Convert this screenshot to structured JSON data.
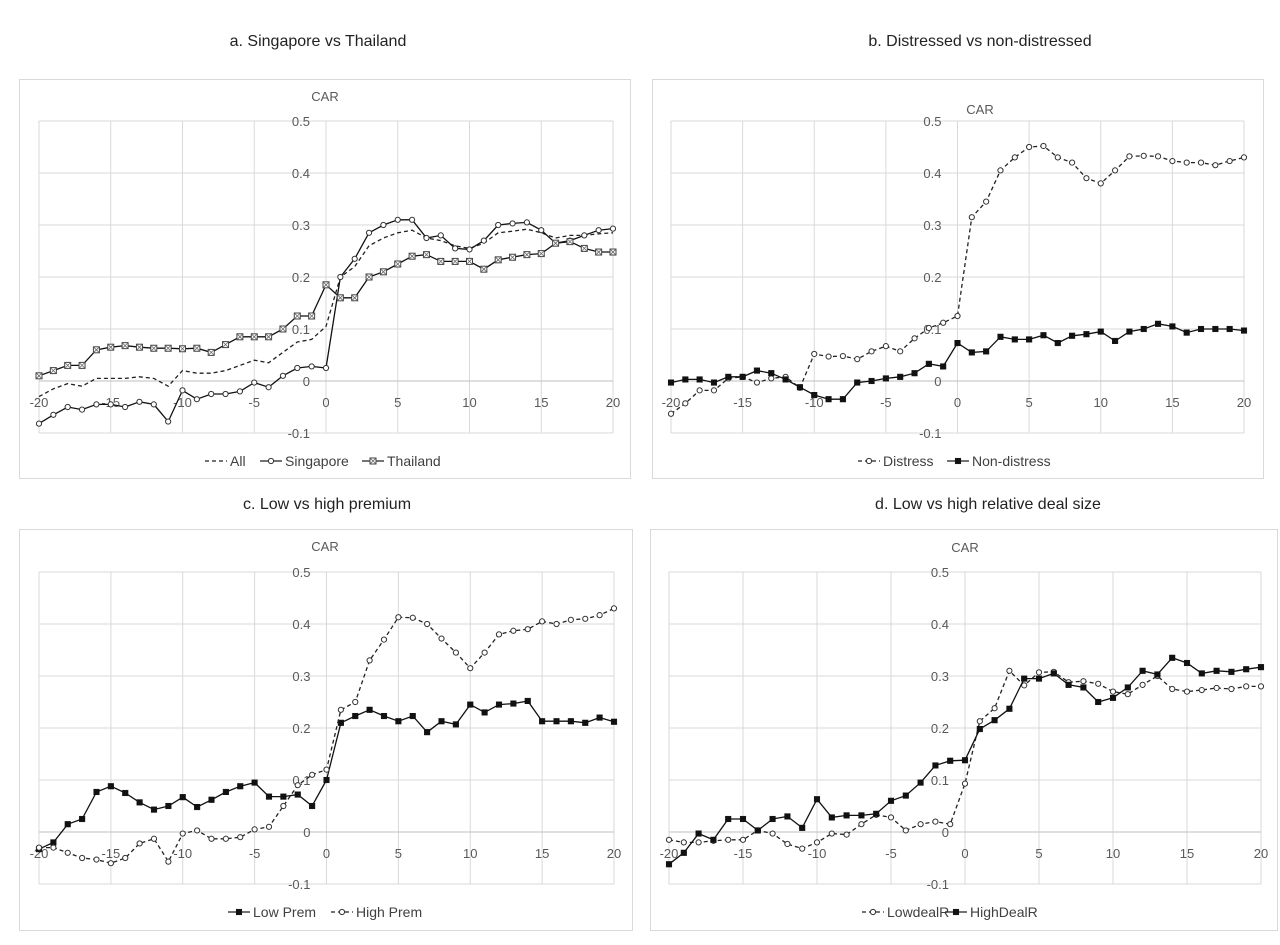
{
  "panels": [
    {
      "title": "a.  Singapore vs Thailand"
    },
    {
      "title": "b.  Distressed vs non-distressed"
    },
    {
      "title": "c.  Low vs high premium"
    },
    {
      "title": "d.  Low vs high relative deal size"
    }
  ],
  "chart_data": [
    {
      "type": "line",
      "title": "a.  Singapore vs Thailand",
      "ylabel": "CAR",
      "xlim": [
        -20,
        20
      ],
      "ylim": [
        -0.1,
        0.5
      ],
      "xticks": [
        "-20",
        "-15",
        "-10",
        "-5",
        "0",
        "5",
        "10",
        "15",
        "20"
      ],
      "yticks": [
        "-0.1",
        "0",
        "0.1",
        "0.2",
        "0.3",
        "0.4",
        "0.5"
      ],
      "grid": true,
      "legend": "bottom",
      "x": [
        -20,
        -19,
        -18,
        -17,
        -16,
        -15,
        -14,
        -13,
        -12,
        -11,
        -10,
        -9,
        -8,
        -7,
        -6,
        -5,
        -4,
        -3,
        -2,
        -1,
        0,
        1,
        2,
        3,
        4,
        5,
        6,
        7,
        8,
        9,
        10,
        11,
        12,
        13,
        14,
        15,
        16,
        17,
        18,
        19,
        20
      ],
      "series": [
        {
          "name": "All",
          "style": "dashed",
          "marker": "none",
          "values": [
            -0.03,
            -0.015,
            -0.005,
            -0.01,
            0.005,
            0.005,
            0.005,
            0.008,
            0.005,
            -0.01,
            0.02,
            0.015,
            0.015,
            0.02,
            0.03,
            0.04,
            0.035,
            0.055,
            0.075,
            0.08,
            0.105,
            0.2,
            0.22,
            0.26,
            0.275,
            0.285,
            0.29,
            0.275,
            0.27,
            0.26,
            0.255,
            0.265,
            0.285,
            0.288,
            0.292,
            0.285,
            0.275,
            0.28,
            0.28,
            0.283,
            0.285
          ]
        },
        {
          "name": "Singapore",
          "style": "solid",
          "marker": "open-circle",
          "values": [
            -0.082,
            -0.065,
            -0.05,
            -0.055,
            -0.045,
            -0.045,
            -0.05,
            -0.04,
            -0.045,
            -0.078,
            -0.018,
            -0.035,
            -0.025,
            -0.025,
            -0.02,
            -0.003,
            -0.012,
            0.01,
            0.025,
            0.028,
            0.025,
            0.2,
            0.235,
            0.285,
            0.3,
            0.31,
            0.31,
            0.275,
            0.28,
            0.255,
            0.253,
            0.27,
            0.3,
            0.303,
            0.305,
            0.29,
            0.265,
            0.27,
            0.28,
            0.29,
            0.293
          ]
        },
        {
          "name": "Thailand",
          "style": "solid",
          "marker": "square-x",
          "values": [
            0.01,
            0.02,
            0.03,
            0.03,
            0.06,
            0.065,
            0.068,
            0.065,
            0.063,
            0.063,
            0.062,
            0.063,
            0.055,
            0.07,
            0.085,
            0.085,
            0.085,
            0.1,
            0.125,
            0.125,
            0.185,
            0.16,
            0.16,
            0.2,
            0.21,
            0.225,
            0.24,
            0.243,
            0.23,
            0.23,
            0.23,
            0.215,
            0.233,
            0.238,
            0.243,
            0.245,
            0.265,
            0.268,
            0.255,
            0.248,
            0.248
          ]
        }
      ]
    },
    {
      "type": "line",
      "title": "b.  Distressed vs non-distressed",
      "ylabel": "CAR",
      "xlim": [
        -20,
        20
      ],
      "ylim": [
        -0.1,
        0.5
      ],
      "xticks": [
        "-20",
        "-15",
        "-10",
        "-5",
        "0",
        "5",
        "10",
        "15",
        "20"
      ],
      "yticks": [
        "-0.1",
        "0",
        "0.1",
        "0.2",
        "0.3",
        "0.4",
        "0.5"
      ],
      "grid": true,
      "legend": "bottom",
      "x": [
        -20,
        -19,
        -18,
        -17,
        -16,
        -15,
        -14,
        -13,
        -12,
        -11,
        -10,
        -9,
        -8,
        -7,
        -6,
        -5,
        -4,
        -3,
        -2,
        -1,
        0,
        1,
        2,
        3,
        4,
        5,
        6,
        7,
        8,
        9,
        10,
        11,
        12,
        13,
        14,
        15,
        16,
        17,
        18,
        19,
        20
      ],
      "series": [
        {
          "name": "Distress",
          "style": "dashed",
          "marker": "open-circle",
          "values": [
            -0.063,
            -0.043,
            -0.018,
            -0.018,
            0.005,
            0.008,
            -0.003,
            0.005,
            0.008,
            -0.013,
            0.052,
            0.047,
            0.048,
            0.042,
            0.057,
            0.067,
            0.057,
            0.082,
            0.102,
            0.112,
            0.125,
            0.315,
            0.345,
            0.405,
            0.43,
            0.45,
            0.452,
            0.43,
            0.42,
            0.39,
            0.38,
            0.405,
            0.432,
            0.433,
            0.432,
            0.423,
            0.42,
            0.42,
            0.415,
            0.423,
            0.43
          ]
        },
        {
          "name": "Non-distress",
          "style": "solid",
          "marker": "filled-square",
          "values": [
            -0.003,
            0.003,
            0.003,
            -0.003,
            0.008,
            0.008,
            0.02,
            0.015,
            0.003,
            -0.012,
            -0.027,
            -0.035,
            -0.035,
            -0.003,
            0.0,
            0.005,
            0.008,
            0.015,
            0.033,
            0.028,
            0.073,
            0.055,
            0.057,
            0.085,
            0.08,
            0.08,
            0.088,
            0.073,
            0.087,
            0.09,
            0.095,
            0.077,
            0.095,
            0.1,
            0.11,
            0.105,
            0.093,
            0.1,
            0.1,
            0.1,
            0.097
          ]
        }
      ]
    },
    {
      "type": "line",
      "title": "c.  Low vs high premium",
      "ylabel": "CAR",
      "xlim": [
        -20,
        20
      ],
      "ylim": [
        -0.1,
        0.5
      ],
      "xticks": [
        "-20",
        "-15",
        "-10",
        "-5",
        "0",
        "5",
        "10",
        "15",
        "20"
      ],
      "yticks": [
        "-0.1",
        "0",
        "0.1",
        "0.2",
        "0.3",
        "0.4",
        "0.5"
      ],
      "grid": true,
      "legend": "bottom",
      "x": [
        -20,
        -19,
        -18,
        -17,
        -16,
        -15,
        -14,
        -13,
        -12,
        -11,
        -10,
        -9,
        -8,
        -7,
        -6,
        -5,
        -4,
        -3,
        -2,
        -1,
        0,
        1,
        2,
        3,
        4,
        5,
        6,
        7,
        8,
        9,
        10,
        11,
        12,
        13,
        14,
        15,
        16,
        17,
        18,
        19,
        20
      ],
      "series": [
        {
          "name": "Low Prem",
          "style": "solid",
          "marker": "filled-square",
          "values": [
            -0.033,
            -0.02,
            0.015,
            0.025,
            0.077,
            0.088,
            0.075,
            0.057,
            0.043,
            0.05,
            0.067,
            0.048,
            0.062,
            0.077,
            0.088,
            0.095,
            0.068,
            0.068,
            0.072,
            0.05,
            0.1,
            0.21,
            0.223,
            0.235,
            0.223,
            0.213,
            0.223,
            0.192,
            0.213,
            0.207,
            0.245,
            0.23,
            0.245,
            0.247,
            0.252,
            0.213,
            0.213,
            0.213,
            0.21,
            0.22,
            0.212
          ]
        },
        {
          "name": "High Prem",
          "style": "dashed",
          "marker": "open-circle",
          "values": [
            -0.03,
            -0.03,
            -0.04,
            -0.05,
            -0.053,
            -0.06,
            -0.05,
            -0.022,
            -0.013,
            -0.057,
            -0.003,
            0.003,
            -0.013,
            -0.013,
            -0.01,
            0.005,
            0.01,
            0.05,
            0.09,
            0.11,
            0.12,
            0.235,
            0.25,
            0.33,
            0.37,
            0.413,
            0.412,
            0.4,
            0.372,
            0.345,
            0.315,
            0.345,
            0.38,
            0.387,
            0.39,
            0.405,
            0.4,
            0.408,
            0.41,
            0.417,
            0.43
          ]
        }
      ]
    },
    {
      "type": "line",
      "title": "d.  Low vs high relative deal size",
      "ylabel": "CAR",
      "xlim": [
        -20,
        20
      ],
      "ylim": [
        -0.1,
        0.5
      ],
      "xticks": [
        "-20",
        "-15",
        "-10",
        "-5",
        "0",
        "5",
        "10",
        "15",
        "20"
      ],
      "yticks": [
        "-0.1",
        "0",
        "0.1",
        "0.2",
        "0.3",
        "0.4",
        "0.5"
      ],
      "grid": true,
      "legend": "bottom",
      "x": [
        -20,
        -19,
        -18,
        -17,
        -16,
        -15,
        -14,
        -13,
        -12,
        -11,
        -10,
        -9,
        -8,
        -7,
        -6,
        -5,
        -4,
        -3,
        -2,
        -1,
        0,
        1,
        2,
        3,
        4,
        5,
        6,
        7,
        8,
        9,
        10,
        11,
        12,
        13,
        14,
        15,
        16,
        17,
        18,
        19,
        20
      ],
      "series": [
        {
          "name": "LowdealR",
          "style": "dashed",
          "marker": "open-circle",
          "values": [
            -0.015,
            -0.02,
            -0.02,
            -0.017,
            -0.015,
            -0.015,
            0.003,
            -0.003,
            -0.023,
            -0.032,
            -0.02,
            -0.003,
            -0.005,
            0.015,
            0.033,
            0.028,
            0.003,
            0.015,
            0.02,
            0.015,
            0.093,
            0.213,
            0.238,
            0.31,
            0.282,
            0.307,
            0.308,
            0.288,
            0.29,
            0.285,
            0.27,
            0.265,
            0.283,
            0.3,
            0.275,
            0.27,
            0.273,
            0.277,
            0.275,
            0.28,
            0.28
          ]
        },
        {
          "name": "HighDealR",
          "style": "solid",
          "marker": "filled-square",
          "values": [
            -0.062,
            -0.04,
            -0.003,
            -0.015,
            0.025,
            0.025,
            0.003,
            0.025,
            0.03,
            0.008,
            0.063,
            0.028,
            0.032,
            0.032,
            0.035,
            0.06,
            0.07,
            0.095,
            0.128,
            0.137,
            0.138,
            0.198,
            0.215,
            0.237,
            0.295,
            0.295,
            0.305,
            0.283,
            0.278,
            0.25,
            0.258,
            0.278,
            0.31,
            0.303,
            0.335,
            0.325,
            0.305,
            0.31,
            0.308,
            0.313,
            0.317
          ]
        }
      ]
    }
  ]
}
